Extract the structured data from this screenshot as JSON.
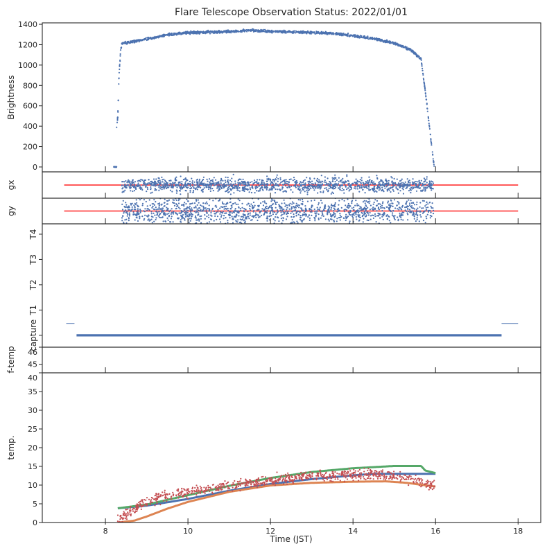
{
  "chart_data": {
    "type": "scatter",
    "title": "Flare Telescope Observation Status: 2022/01/01",
    "xlabel": "Time (JST)",
    "xlim": [
      6.47,
      18.55
    ],
    "xticks": [
      8,
      10,
      12,
      14,
      16,
      18
    ],
    "colors": {
      "blue": "#4c72b0",
      "orange": "#dd8452",
      "green": "#55a868",
      "red": "#c44e52",
      "reference": "#ff2020",
      "axis": "#262626"
    },
    "panels": [
      {
        "id": "brightness",
        "ylabel": "Brightness",
        "ylim": [
          -48,
          1414
        ],
        "yticks": [
          0,
          200,
          400,
          600,
          800,
          1000,
          1200,
          1400
        ],
        "series": [
          {
            "name": "brightness",
            "kind": "scatter",
            "color": "#4c72b0",
            "x_range": [
              8.27,
              15.97
            ],
            "n": 1500,
            "noise": 6,
            "key_points": [
              [
                8.27,
                380
              ],
              [
                8.3,
                500
              ],
              [
                8.33,
                900
              ],
              [
                8.37,
                1150
              ],
              [
                8.4,
                1210
              ],
              [
                8.6,
                1225
              ],
              [
                9.0,
                1255
              ],
              [
                9.5,
                1295
              ],
              [
                10.0,
                1318
              ],
              [
                11.0,
                1328
              ],
              [
                11.5,
                1340
              ],
              [
                12.0,
                1330
              ],
              [
                13.0,
                1320
              ],
              [
                13.5,
                1310
              ],
              [
                14.0,
                1290
              ],
              [
                14.5,
                1260
              ],
              [
                15.0,
                1215
              ],
              [
                15.4,
                1150
              ],
              [
                15.65,
                1060
              ],
              [
                15.7,
                900
              ],
              [
                15.78,
                650
              ],
              [
                15.85,
                400
              ],
              [
                15.9,
                220
              ],
              [
                15.97,
                0
              ]
            ]
          },
          {
            "name": "brightness-dark",
            "kind": "scatter",
            "color": "#4c72b0",
            "x_range": [
              8.2,
              8.27
            ],
            "n": 20,
            "noise": 2,
            "key_points": [
              [
                8.2,
                0
              ],
              [
                8.27,
                0
              ]
            ]
          }
        ]
      },
      {
        "id": "gx",
        "ylabel": "gx",
        "ylim": [
          -3,
          3
        ],
        "yticks": [],
        "reference_line": {
          "y": 0,
          "x": [
            7.0,
            18.0
          ],
          "color": "#ff2020"
        },
        "series": [
          {
            "name": "gx",
            "kind": "scatter",
            "color": "#4c72b0",
            "x_range": [
              8.4,
              15.95
            ],
            "n": 1400,
            "noise": 0.8,
            "key_points": [
              [
                8.4,
                0
              ],
              [
                15.95,
                0
              ]
            ]
          }
        ]
      },
      {
        "id": "gy",
        "ylabel": "gy",
        "ylim": [
          -3,
          3
        ],
        "yticks": [],
        "reference_line": {
          "y": 0,
          "x": [
            7.0,
            18.0
          ],
          "color": "#ff2020"
        },
        "series": [
          {
            "name": "gy",
            "kind": "scatter",
            "color": "#4c72b0",
            "x_range": [
              8.4,
              15.95
            ],
            "n": 1400,
            "noise": 1.6,
            "key_points": [
              [
                8.4,
                0
              ],
              [
                15.95,
                0
              ]
            ]
          }
        ]
      },
      {
        "id": "status",
        "ylabel": "",
        "ylim": [
          -0.47,
          4.41
        ],
        "category_labels": [
          "capture",
          "T1",
          "T2",
          "T3",
          "T4"
        ],
        "status_lines": [
          {
            "name": "capture",
            "y": 0,
            "x": [
              7.3,
              17.6
            ],
            "color": "#4c72b0",
            "weight": "bold"
          },
          {
            "name": "idle-start",
            "y": 0.47,
            "x": [
              7.05,
              7.25
            ],
            "color": "#4c72b0",
            "weight": "thin"
          },
          {
            "name": "idle-end",
            "y": 0.47,
            "x": [
              17.6,
              18.0
            ],
            "color": "#4c72b0",
            "weight": "thin"
          }
        ]
      },
      {
        "id": "f-temp",
        "ylabel": "f-temp",
        "ylim": [
          44.5,
          46
        ],
        "yticks": [
          45,
          46
        ],
        "series": []
      },
      {
        "id": "temp",
        "ylabel": "temp.",
        "ylim": [
          0,
          40
        ],
        "yticks": [
          0,
          5,
          10,
          15,
          20,
          25,
          30,
          35,
          40
        ],
        "series": [
          {
            "name": "temp-blue",
            "kind": "line",
            "color": "#4c72b0",
            "key_points": [
              [
                8.3,
                3.8
              ],
              [
                9.0,
                4.5
              ],
              [
                10.0,
                6.3
              ],
              [
                11.0,
                8.5
              ],
              [
                12.0,
                10.3
              ],
              [
                13.0,
                11.6
              ],
              [
                14.0,
                12.6
              ],
              [
                14.5,
                13.0
              ],
              [
                16.0,
                13.0
              ]
            ]
          },
          {
            "name": "temp-orange",
            "kind": "line",
            "color": "#dd8452",
            "key_points": [
              [
                8.3,
                0
              ],
              [
                8.7,
                0.5
              ],
              [
                9.0,
                1.6
              ],
              [
                9.5,
                3.7
              ],
              [
                10.0,
                5.5
              ],
              [
                11.0,
                8.2
              ],
              [
                12.0,
                9.9
              ],
              [
                13.0,
                10.6
              ],
              [
                14.0,
                10.9
              ],
              [
                14.8,
                11.0
              ],
              [
                15.3,
                10.6
              ],
              [
                16.0,
                9.6
              ]
            ]
          },
          {
            "name": "temp-green",
            "kind": "line",
            "color": "#55a868",
            "key_points": [
              [
                8.3,
                3.8
              ],
              [
                9.0,
                4.8
              ],
              [
                10.0,
                7.3
              ],
              [
                11.0,
                9.8
              ],
              [
                12.0,
                11.9
              ],
              [
                13.0,
                13.5
              ],
              [
                14.0,
                14.5
              ],
              [
                15.0,
                15.1
              ],
              [
                15.65,
                15.1
              ],
              [
                15.75,
                13.9
              ],
              [
                16.0,
                13.2
              ]
            ]
          },
          {
            "name": "temp-red",
            "kind": "scatter",
            "color": "#c44e52",
            "x_range": [
              8.3,
              15.97
            ],
            "n": 900,
            "noise": 0.7,
            "key_points": [
              [
                8.3,
                0.7
              ],
              [
                8.6,
                3.0
              ],
              [
                9.0,
                5.5
              ],
              [
                9.5,
                7.2
              ],
              [
                10.0,
                8.2
              ],
              [
                11.0,
                9.8
              ],
              [
                12.0,
                11.4
              ],
              [
                13.0,
                12.3
              ],
              [
                14.0,
                12.8
              ],
              [
                14.5,
                12.9
              ],
              [
                15.0,
                12.4
              ],
              [
                15.5,
                11.3
              ],
              [
                16.0,
                9.6
              ]
            ]
          }
        ]
      }
    ]
  }
}
